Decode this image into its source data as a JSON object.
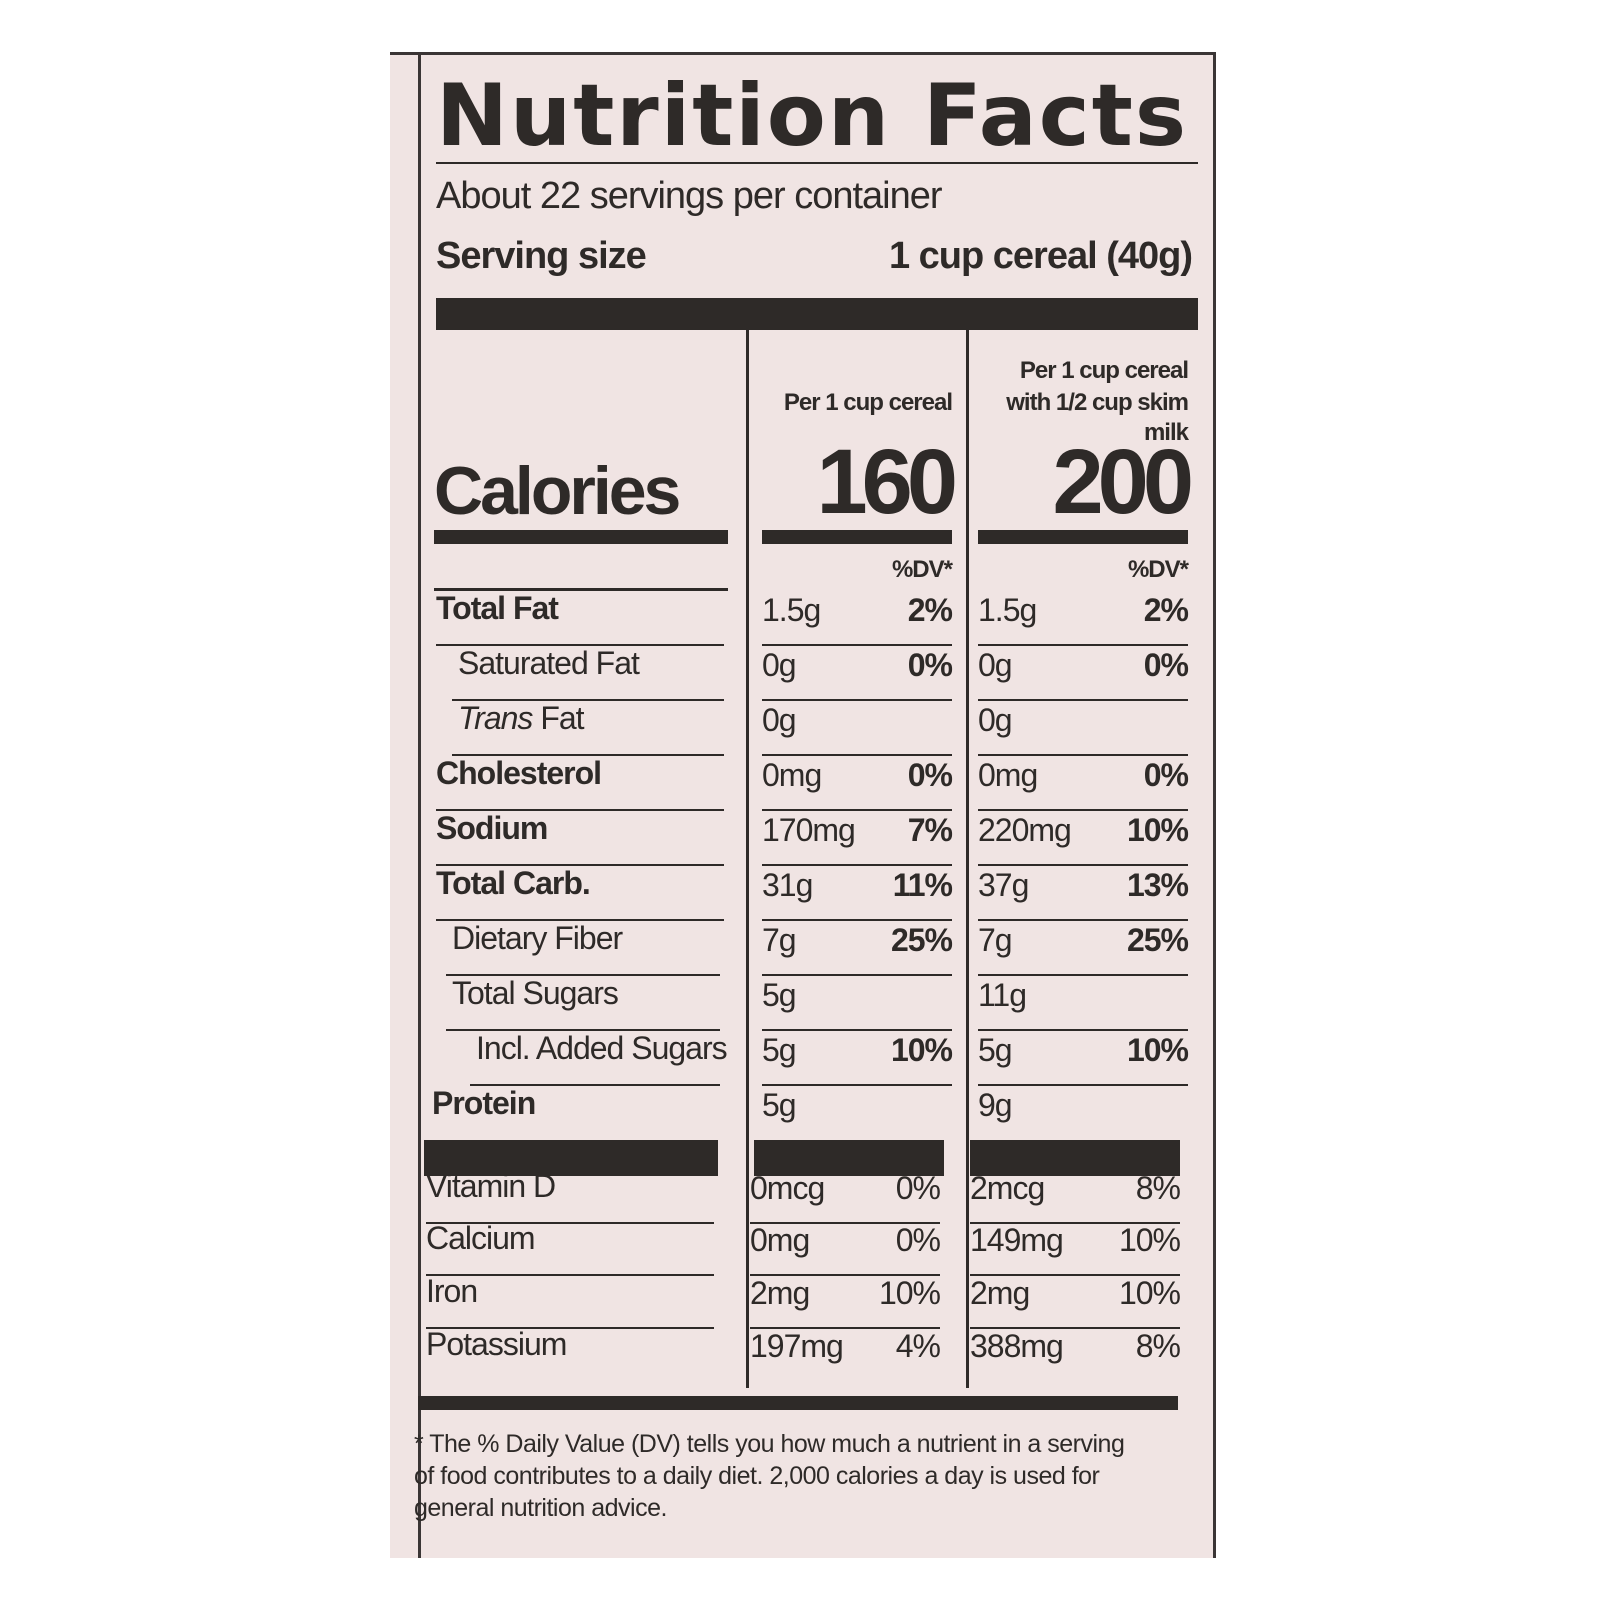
{
  "label": {
    "title": "Nutrition Facts",
    "servings_per_container": "About 22 servings per container",
    "serving_size_label": "Serving size",
    "serving_size_value": "1 cup cereal (40g)",
    "col1_header": "Per 1 cup cereal",
    "col2_header_line1": "Per 1 cup cereal",
    "col2_header_line2": "with 1/2 cup skim milk",
    "calories_label": "Calories",
    "calories_col1": "160",
    "calories_col2": "200",
    "dv_header": "%DV*",
    "rows": [
      {
        "label": "Total Fat",
        "a1": "1.5g",
        "p1": "2%",
        "a2": "1.5g",
        "p2": "2%"
      },
      {
        "label": "Saturated Fat",
        "a1": "0g",
        "p1": "0%",
        "a2": "0g",
        "p2": "0%"
      },
      {
        "label_italic": "Trans",
        "label": "Fat",
        "a1": "0g",
        "p1": "",
        "a2": "0g",
        "p2": ""
      },
      {
        "label": "Cholesterol",
        "a1": "0mg",
        "p1": "0%",
        "a2": "0mg",
        "p2": "0%"
      },
      {
        "label": "Sodium",
        "a1": "170mg",
        "p1": "7%",
        "a2": "220mg",
        "p2": "10%"
      },
      {
        "label": "Total Carb.",
        "a1": "31g",
        "p1": "11%",
        "a2": "37g",
        "p2": "13%"
      },
      {
        "label": "Dietary Fiber",
        "a1": "7g",
        "p1": "25%",
        "a2": "7g",
        "p2": "25%"
      },
      {
        "label": "Total Sugars",
        "a1": "5g",
        "p1": "",
        "a2": "11g",
        "p2": ""
      },
      {
        "label": "Incl. Added Sugars",
        "a1": "5g",
        "p1": "10%",
        "a2": "5g",
        "p2": "10%"
      },
      {
        "label": "Protein",
        "a1": "5g",
        "p1": "",
        "a2": "9g",
        "p2": ""
      },
      {
        "label": "Vitamin D",
        "a1": "0mcg",
        "p1": "0%",
        "a2": "2mcg",
        "p2": "8%"
      },
      {
        "label": "Calcium",
        "a1": "0mg",
        "p1": "0%",
        "a2": "149mg",
        "p2": "10%"
      },
      {
        "label": "Iron",
        "a1": "2mg",
        "p1": "10%",
        "a2": "2mg",
        "p2": "10%"
      },
      {
        "label": "Potassium",
        "a1": "197mg",
        "p1": "4%",
        "a2": "388mg",
        "p2": "8%"
      }
    ],
    "footnote": "* The % Daily Value (DV) tells you how much a nutrient in a serving of food contributes to a daily diet. 2,000 calories a day is used for general nutrition advice."
  }
}
